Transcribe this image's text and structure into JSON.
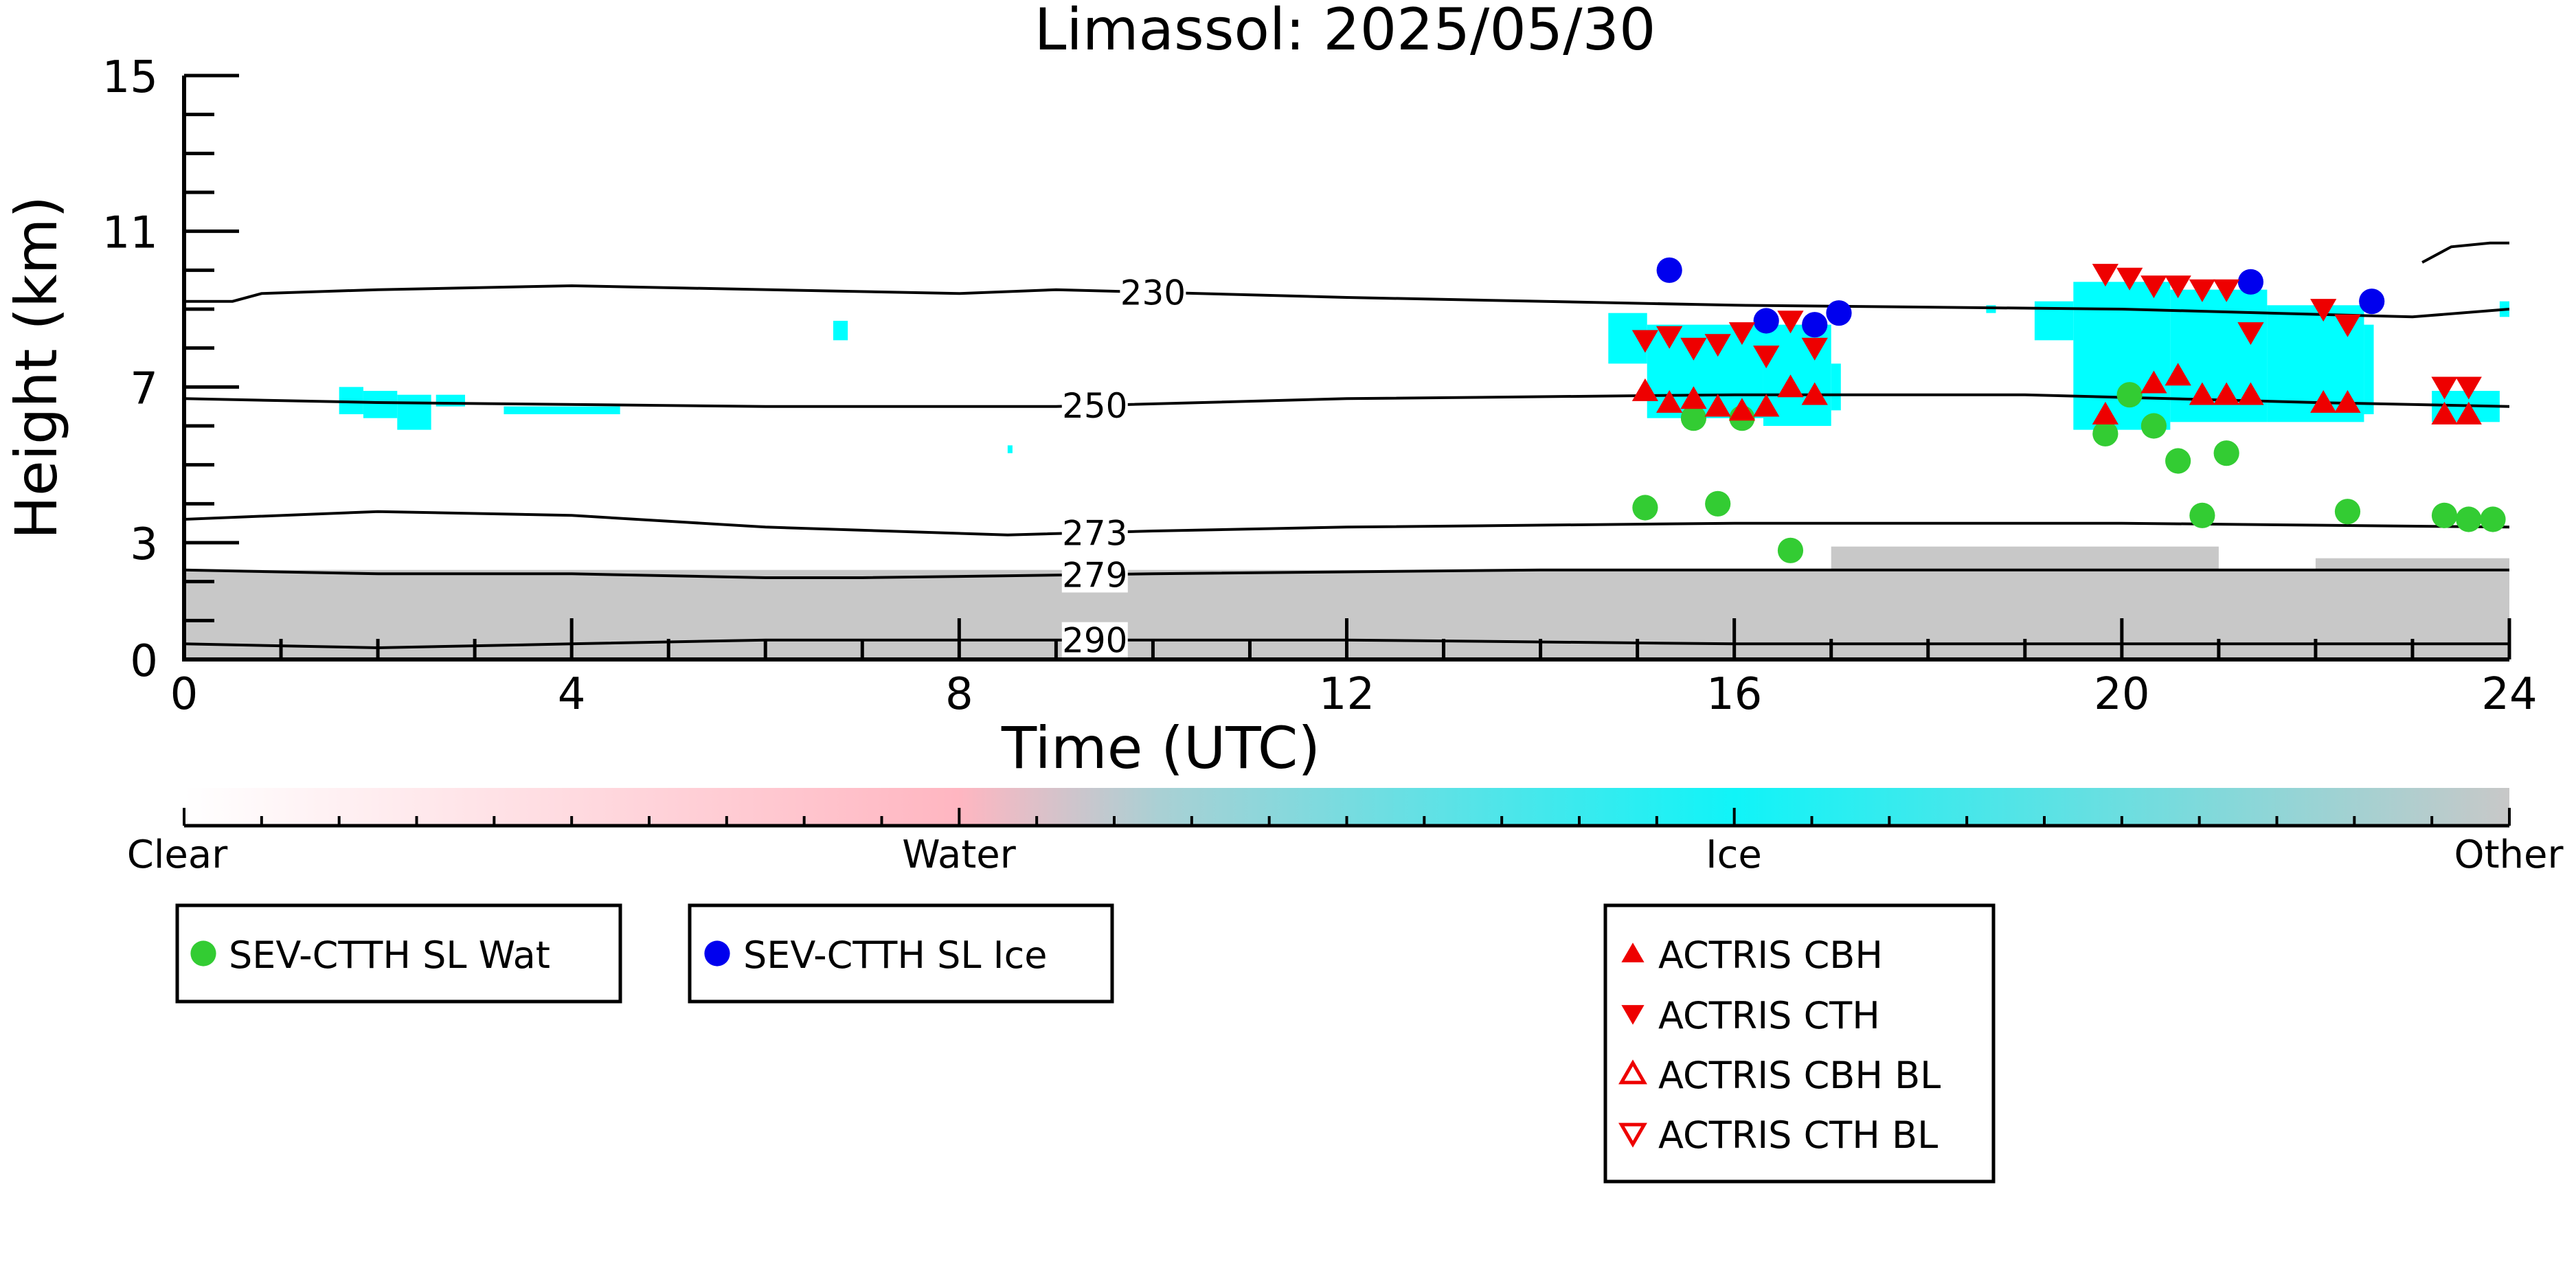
{
  "chart_data": {
    "type": "scatter",
    "title": "Limassol: 2025/05/30",
    "xlabel": "Time (UTC)",
    "ylabel": "Height (km)",
    "xlim": [
      0,
      24
    ],
    "ylim": [
      0,
      15
    ],
    "x_ticks": [
      0,
      4,
      8,
      12,
      16,
      20,
      24
    ],
    "y_ticks": [
      0,
      3,
      7,
      11,
      15
    ],
    "x_tick_labels": [
      "0",
      "4",
      "8",
      "12",
      "16",
      "20",
      "24"
    ],
    "y_tick_labels": [
      "0",
      "3",
      "7",
      "11",
      "15"
    ],
    "colorbar": {
      "labels": [
        "Clear",
        "Water",
        "Ice",
        "Other"
      ],
      "colors": [
        "#ffffff",
        "#ffb6c1",
        "#00ffff",
        "#c8c8c8"
      ]
    },
    "isotherms": [
      {
        "label": "230",
        "label_x": 10.0,
        "points": [
          [
            0,
            9.2
          ],
          [
            0.5,
            9.2
          ],
          [
            0.8,
            9.4
          ],
          [
            2,
            9.5
          ],
          [
            4,
            9.6
          ],
          [
            8,
            9.4
          ],
          [
            9,
            9.5
          ],
          [
            12,
            9.3
          ],
          [
            16,
            9.1
          ],
          [
            20,
            9.0
          ],
          [
            23,
            8.8
          ],
          [
            24,
            9.0
          ]
        ]
      },
      {
        "label": "250",
        "label_x": 9.4,
        "points": [
          [
            0,
            6.7
          ],
          [
            2,
            6.6
          ],
          [
            6,
            6.5
          ],
          [
            9,
            6.5
          ],
          [
            12,
            6.7
          ],
          [
            16,
            6.8
          ],
          [
            19,
            6.8
          ],
          [
            22,
            6.6
          ],
          [
            24,
            6.5
          ]
        ]
      },
      {
        "label": "273",
        "label_x": 9.4,
        "points": [
          [
            0,
            3.6
          ],
          [
            2,
            3.8
          ],
          [
            4,
            3.7
          ],
          [
            6,
            3.4
          ],
          [
            8.5,
            3.2
          ],
          [
            10,
            3.3
          ],
          [
            12,
            3.4
          ],
          [
            16,
            3.5
          ],
          [
            20,
            3.5
          ],
          [
            24,
            3.4
          ]
        ]
      },
      {
        "label": "279",
        "label_x": 9.4,
        "points": [
          [
            0,
            2.3
          ],
          [
            2,
            2.2
          ],
          [
            4,
            2.2
          ],
          [
            6,
            2.1
          ],
          [
            7,
            2.1
          ],
          [
            10,
            2.2
          ],
          [
            14,
            2.3
          ],
          [
            20,
            2.3
          ],
          [
            24,
            2.3
          ]
        ]
      },
      {
        "label": "290",
        "label_x": 9.4,
        "points": [
          [
            0,
            0.4
          ],
          [
            2,
            0.3
          ],
          [
            4,
            0.4
          ],
          [
            6,
            0.5
          ],
          [
            8,
            0.5
          ],
          [
            9.5,
            0.5
          ],
          [
            12,
            0.5
          ],
          [
            16,
            0.4
          ],
          [
            20,
            0.4
          ],
          [
            24,
            0.4
          ]
        ]
      }
    ],
    "ice_regions": [
      [
        1.6,
        1.85,
        6.3,
        7.0
      ],
      [
        1.85,
        2.2,
        6.2,
        6.9
      ],
      [
        2.2,
        2.55,
        5.9,
        6.8
      ],
      [
        2.6,
        2.9,
        6.5,
        6.8
      ],
      [
        3.3,
        4.5,
        6.3,
        6.5
      ],
      [
        6.7,
        6.85,
        8.2,
        8.7
      ],
      [
        8.5,
        8.55,
        5.3,
        5.5
      ],
      [
        14.7,
        15.1,
        7.6,
        8.9
      ],
      [
        15.1,
        16.3,
        6.2,
        8.6
      ],
      [
        16.3,
        17.0,
        6.0,
        8.6
      ],
      [
        17.0,
        17.1,
        6.4,
        7.6
      ],
      [
        18.6,
        18.7,
        8.9,
        9.1
      ],
      [
        19.1,
        19.5,
        8.2,
        9.2
      ],
      [
        19.5,
        20.5,
        5.9,
        9.7
      ],
      [
        20.5,
        21.5,
        6.1,
        9.5
      ],
      [
        21.5,
        22.5,
        6.1,
        9.1
      ],
      [
        22.5,
        22.6,
        6.3,
        8.6
      ],
      [
        23.2,
        23.9,
        6.1,
        6.9
      ],
      [
        23.9,
        24.0,
        8.8,
        9.2
      ]
    ],
    "other_regions": [
      [
        0,
        24,
        0,
        2.3
      ],
      [
        17.0,
        21.0,
        2.3,
        2.9
      ],
      [
        22.0,
        24.0,
        2.3,
        2.6
      ]
    ],
    "contour_other": {
      "points": [
        [
          23.1,
          10.2
        ],
        [
          23.4,
          10.6
        ],
        [
          23.8,
          10.7
        ],
        [
          24,
          10.7
        ]
      ]
    },
    "series": [
      {
        "name": "SEV-CTTH SL Wat",
        "marker": "circle",
        "color": "#33cc33",
        "points": [
          [
            15.08,
            3.9
          ],
          [
            15.58,
            6.2
          ],
          [
            15.83,
            4.0
          ],
          [
            16.08,
            6.2
          ],
          [
            16.58,
            2.8
          ],
          [
            19.83,
            5.8
          ],
          [
            20.08,
            6.8
          ],
          [
            20.33,
            6.0
          ],
          [
            20.58,
            5.1
          ],
          [
            20.83,
            3.7
          ],
          [
            21.08,
            5.3
          ],
          [
            22.33,
            3.8
          ],
          [
            23.33,
            3.7
          ],
          [
            23.58,
            3.6
          ],
          [
            23.83,
            3.6
          ]
        ]
      },
      {
        "name": "SEV-CTTH SL Ice",
        "marker": "circle",
        "color": "#0000ee",
        "points": [
          [
            15.33,
            10.0
          ],
          [
            16.33,
            8.7
          ],
          [
            16.83,
            8.6
          ],
          [
            17.08,
            8.9
          ],
          [
            21.33,
            9.7
          ],
          [
            22.58,
            9.2
          ]
        ]
      },
      {
        "name": "ACTRIS CBH",
        "marker": "triangle-up",
        "color": "#ee0000",
        "points": [
          [
            15.08,
            6.9
          ],
          [
            15.33,
            6.6
          ],
          [
            15.58,
            6.7
          ],
          [
            15.83,
            6.5
          ],
          [
            16.08,
            6.4
          ],
          [
            16.33,
            6.5
          ],
          [
            16.58,
            7.0
          ],
          [
            16.83,
            6.8
          ],
          [
            19.83,
            6.3
          ],
          [
            20.33,
            7.1
          ],
          [
            20.58,
            7.3
          ],
          [
            20.83,
            6.8
          ],
          [
            21.08,
            6.8
          ],
          [
            21.33,
            6.8
          ],
          [
            22.08,
            6.6
          ],
          [
            22.33,
            6.6
          ],
          [
            23.33,
            6.3
          ],
          [
            23.58,
            6.3
          ]
        ]
      },
      {
        "name": "ACTRIS CTH",
        "marker": "triangle-down",
        "color": "#ee0000",
        "points": [
          [
            15.08,
            8.2
          ],
          [
            15.33,
            8.3
          ],
          [
            15.58,
            8.0
          ],
          [
            15.83,
            8.1
          ],
          [
            16.08,
            8.4
          ],
          [
            16.33,
            7.8
          ],
          [
            16.58,
            8.7
          ],
          [
            16.83,
            8.0
          ],
          [
            19.83,
            9.9
          ],
          [
            20.08,
            9.8
          ],
          [
            20.33,
            9.6
          ],
          [
            20.58,
            9.6
          ],
          [
            20.83,
            9.5
          ],
          [
            21.08,
            9.5
          ],
          [
            21.33,
            8.4
          ],
          [
            22.08,
            9.0
          ],
          [
            22.33,
            8.6
          ],
          [
            23.33,
            7.0
          ],
          [
            23.58,
            7.0
          ]
        ]
      },
      {
        "name": "ACTRIS CBH BL",
        "marker": "triangle-up-open",
        "color": "#ee0000",
        "points": []
      },
      {
        "name": "ACTRIS CTH BL",
        "marker": "triangle-down-open",
        "color": "#ee0000",
        "points": []
      }
    ]
  }
}
